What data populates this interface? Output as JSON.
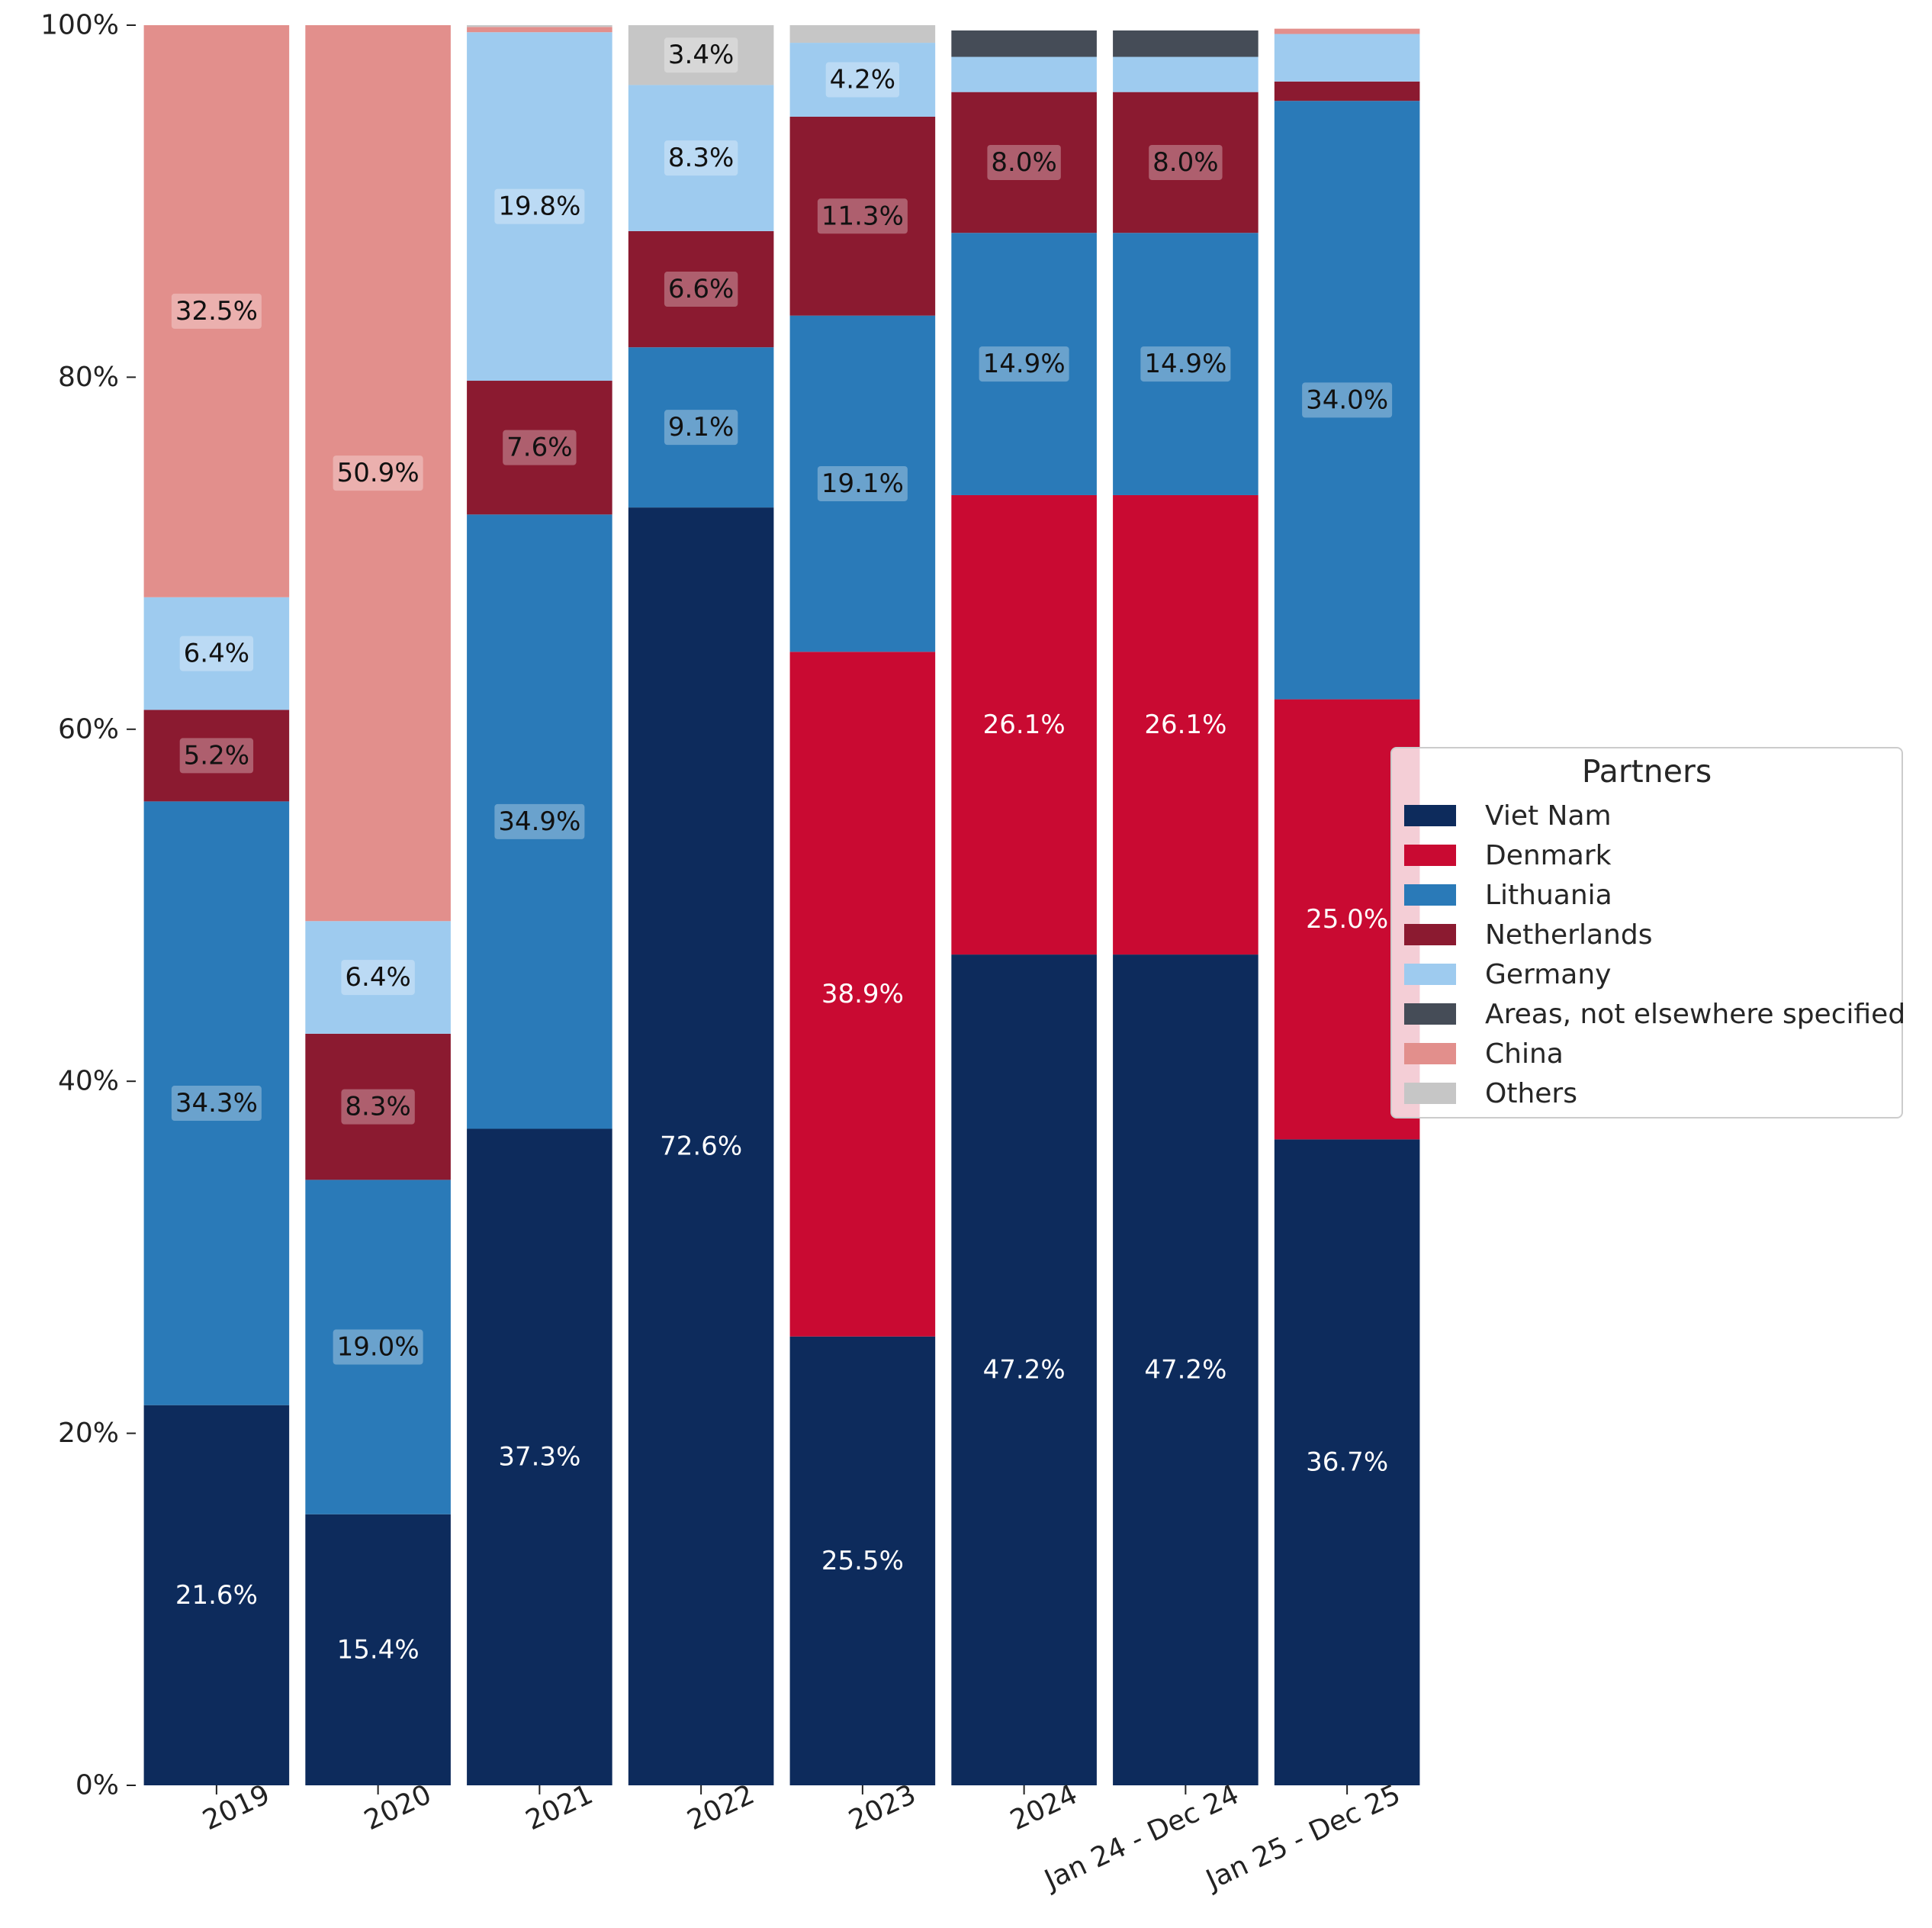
{
  "chart_data": {
    "type": "bar",
    "stacked": true,
    "normalized": true,
    "categories": [
      "2019",
      "2020",
      "2021",
      "2022",
      "2023",
      "2024",
      "Jan 24 - Dec 24",
      "Jan 25 - Dec 25"
    ],
    "ylim": [
      0,
      100
    ],
    "yticks": [
      "0%",
      "20%",
      "40%",
      "60%",
      "80%",
      "100%"
    ],
    "grid": false,
    "legend": {
      "title": "Partners",
      "position": "right"
    },
    "series": [
      {
        "name": "Viet Nam",
        "color": "#0d2b5c",
        "label_color": "#ffffff",
        "label_bg": false,
        "values": [
          21.6,
          15.4,
          37.3,
          72.6,
          25.5,
          47.2,
          47.2,
          36.7
        ]
      },
      {
        "name": "Denmark",
        "color": "#c90a32",
        "label_color": "#ffffff",
        "label_bg": false,
        "values": [
          0,
          0,
          0,
          0,
          38.9,
          26.1,
          26.1,
          25.0
        ]
      },
      {
        "name": "Lithuania",
        "color": "#2a7ab8",
        "label_color": "#111111",
        "label_bg": true,
        "values": [
          34.3,
          19.0,
          34.9,
          9.1,
          19.1,
          14.9,
          14.9,
          34.0
        ]
      },
      {
        "name": "Netherlands",
        "color": "#8b1a30",
        "label_color": "#111111",
        "label_bg": true,
        "values": [
          5.2,
          8.3,
          7.6,
          6.6,
          11.3,
          8.0,
          8.0,
          1.1
        ]
      },
      {
        "name": "Germany",
        "color": "#9ecbef",
        "label_color": "#111111",
        "label_bg": true,
        "values": [
          6.4,
          6.4,
          19.8,
          8.3,
          4.2,
          2.0,
          2.0,
          2.7
        ]
      },
      {
        "name": "Areas, not elsewhere specified",
        "color": "#454c57",
        "label_color": "#ffffff",
        "label_bg": false,
        "values": [
          0,
          0,
          0,
          0,
          0,
          1.5,
          1.5,
          0
        ]
      },
      {
        "name": "China",
        "color": "#e28f8c",
        "label_color": "#111111",
        "label_bg": true,
        "values": [
          32.5,
          50.9,
          0.3,
          0,
          0,
          0,
          0,
          0.3
        ]
      },
      {
        "name": "Others",
        "color": "#c6c6c6",
        "label_color": "#111111",
        "label_bg": true,
        "values": [
          0,
          0,
          0.1,
          3.4,
          1.0,
          0,
          0,
          0
        ]
      }
    ],
    "labels": [
      [
        "21.6%",
        "15.4%",
        "37.3%",
        "72.6%",
        "25.5%",
        "47.2%",
        "47.2%",
        "36.7%"
      ],
      [
        "",
        "",
        "",
        "",
        "38.9%",
        "26.1%",
        "26.1%",
        "25.0%"
      ],
      [
        "34.3%",
        "19.0%",
        "34.9%",
        "9.1%",
        "19.1%",
        "14.9%",
        "14.9%",
        "34.0%"
      ],
      [
        "5.2%",
        "8.3%",
        "7.6%",
        "6.6%",
        "11.3%",
        "8.0%",
        "8.0%",
        ""
      ],
      [
        "6.4%",
        "6.4%",
        "19.8%",
        "8.3%",
        "4.2%",
        "",
        "",
        ""
      ],
      [
        "",
        "",
        "",
        "",
        "",
        "",
        "",
        ""
      ],
      [
        "32.5%",
        "50.9%",
        "",
        "",
        "",
        "",
        "",
        ""
      ],
      [
        "",
        "",
        "",
        "3.4%",
        "",
        "",
        "",
        ""
      ]
    ]
  }
}
